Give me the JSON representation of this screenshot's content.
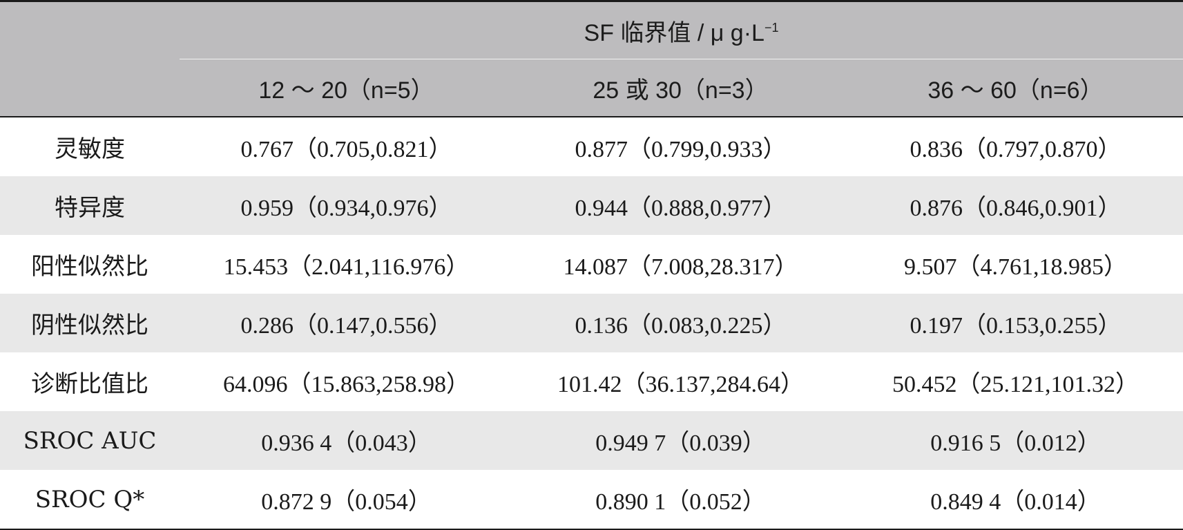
{
  "header": {
    "group_label": "SF 临界值 / μ g·L",
    "group_sup": "−1",
    "columns": [
      "12 ～ 20（n=5）",
      "25 或 30（n=3）",
      "36 ～ 60（n=6）"
    ]
  },
  "rows": [
    {
      "label": "灵敏度",
      "values": [
        "0.767（0.705,0.821）",
        "0.877（0.799,0.933）",
        "0.836（0.797,0.870）"
      ]
    },
    {
      "label": "特异度",
      "values": [
        "0.959（0.934,0.976）",
        "0.944（0.888,0.977）",
        "0.876（0.846,0.901）"
      ]
    },
    {
      "label": "阳性似然比",
      "values": [
        "15.453（2.041,116.976）",
        "14.087（7.008,28.317）",
        "9.507（4.761,18.985）"
      ]
    },
    {
      "label": "阴性似然比",
      "values": [
        "0.286（0.147,0.556）",
        "0.136（0.083,0.225）",
        "0.197（0.153,0.255）"
      ]
    },
    {
      "label": "诊断比值比",
      "values": [
        "64.096（15.863,258.98）",
        "101.42（36.137,284.64）",
        "50.452（25.121,101.32）"
      ]
    },
    {
      "label": "SROC AUC",
      "values": [
        "0.936 4（0.043）",
        "0.949 7（0.039）",
        "0.916 5（0.012）"
      ]
    },
    {
      "label": "SROC Q*",
      "values": [
        "0.872 9（0.054）",
        "0.890 1（0.052）",
        "0.849 4（0.014）"
      ]
    }
  ]
}
